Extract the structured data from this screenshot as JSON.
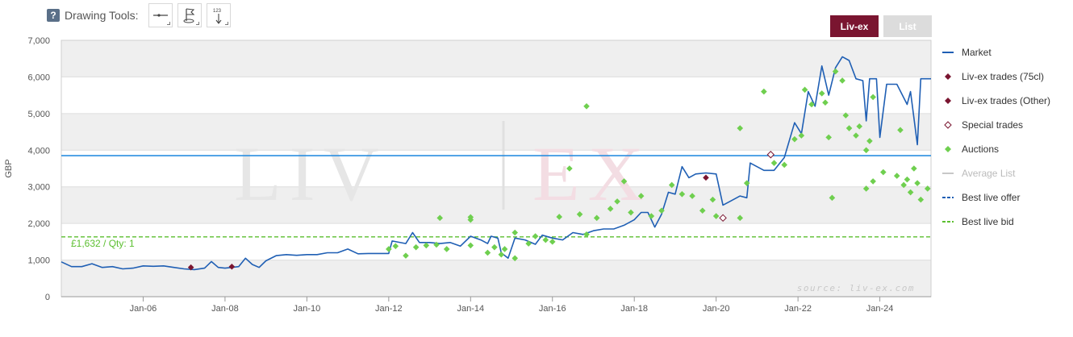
{
  "toolbar": {
    "help_label": "?",
    "title": "Drawing Tools:",
    "tool_123_label": "123"
  },
  "view_tabs": [
    {
      "label": "Liv-ex",
      "active": true
    },
    {
      "label": "List",
      "active": false
    }
  ],
  "colors": {
    "market": "#1f5fb4",
    "liv_ex_trades": "#7a1530",
    "special_trades": "#7a1530",
    "auctions": "#6fcf4f",
    "average_list": "#c8c8c8",
    "best_live_offer": "#1f5fb4",
    "best_live_bid": "#5bbf2f",
    "current_line": "#2a8ee0"
  },
  "chart_data": {
    "type": "line",
    "ylabel": "GBP",
    "ylim": [
      0,
      7000
    ],
    "y_ticks": [
      {
        "value": 0,
        "label": "0"
      },
      {
        "value": 1000,
        "label": "1,000"
      },
      {
        "value": 2000,
        "label": "2,000"
      },
      {
        "value": 3000,
        "label": "3,000"
      },
      {
        "value": 4000,
        "label": "4,000"
      },
      {
        "value": 5000,
        "label": "5,000"
      },
      {
        "value": 6000,
        "label": "6,000"
      },
      {
        "value": 7000,
        "label": "7,000"
      }
    ],
    "xlim": [
      "2004-01",
      "2025-04"
    ],
    "x_ticks": [
      {
        "value": "2006-01",
        "label": "Jan-06"
      },
      {
        "value": "2008-01",
        "label": "Jan-08"
      },
      {
        "value": "2010-01",
        "label": "Jan-10"
      },
      {
        "value": "2012-01",
        "label": "Jan-12"
      },
      {
        "value": "2014-01",
        "label": "Jan-14"
      },
      {
        "value": "2016-01",
        "label": "Jan-16"
      },
      {
        "value": "2018-01",
        "label": "Jan-18"
      },
      {
        "value": "2020-01",
        "label": "Jan-20"
      },
      {
        "value": "2022-01",
        "label": "Jan-22"
      },
      {
        "value": "2024-01",
        "label": "Jan-24"
      }
    ],
    "grid": true,
    "watermark": "LIV | EX",
    "source_text": "source: liv-ex.com",
    "reference_lines": [
      {
        "name": "Current",
        "value": 3850
      },
      {
        "name": "Best live bid",
        "value": 1632,
        "label": "£1,632 / Qty: 1"
      }
    ],
    "series": [
      {
        "name": "Market",
        "type": "line",
        "points": [
          [
            "2004-01",
            950
          ],
          [
            "2004-04",
            820
          ],
          [
            "2004-07",
            820
          ],
          [
            "2004-10",
            900
          ],
          [
            "2005-01",
            800
          ],
          [
            "2005-04",
            820
          ],
          [
            "2005-07",
            760
          ],
          [
            "2005-10",
            780
          ],
          [
            "2006-01",
            840
          ],
          [
            "2006-04",
            830
          ],
          [
            "2006-07",
            840
          ],
          [
            "2006-10",
            800
          ],
          [
            "2007-01",
            760
          ],
          [
            "2007-04",
            740
          ],
          [
            "2007-07",
            780
          ],
          [
            "2007-09",
            960
          ],
          [
            "2007-11",
            800
          ],
          [
            "2008-01",
            780
          ],
          [
            "2008-03",
            800
          ],
          [
            "2008-05",
            820
          ],
          [
            "2008-07",
            1050
          ],
          [
            "2008-09",
            880
          ],
          [
            "2008-11",
            800
          ],
          [
            "2009-01",
            980
          ],
          [
            "2009-04",
            1120
          ],
          [
            "2009-07",
            1150
          ],
          [
            "2009-10",
            1130
          ],
          [
            "2010-01",
            1150
          ],
          [
            "2010-04",
            1150
          ],
          [
            "2010-07",
            1200
          ],
          [
            "2010-10",
            1200
          ],
          [
            "2011-01",
            1300
          ],
          [
            "2011-04",
            1170
          ],
          [
            "2011-07",
            1180
          ],
          [
            "2011-10",
            1180
          ],
          [
            "2012-01",
            1180
          ],
          [
            "2012-02",
            1520
          ],
          [
            "2012-06",
            1450
          ],
          [
            "2012-08",
            1750
          ],
          [
            "2012-10",
            1480
          ],
          [
            "2013-01",
            1480
          ],
          [
            "2013-04",
            1450
          ],
          [
            "2013-07",
            1480
          ],
          [
            "2013-10",
            1380
          ],
          [
            "2014-01",
            1650
          ],
          [
            "2014-04",
            1550
          ],
          [
            "2014-06",
            1450
          ],
          [
            "2014-07",
            1650
          ],
          [
            "2014-09",
            1600
          ],
          [
            "2014-10",
            1200
          ],
          [
            "2014-12",
            1050
          ],
          [
            "2015-02",
            1600
          ],
          [
            "2015-05",
            1550
          ],
          [
            "2015-08",
            1430
          ],
          [
            "2015-10",
            1680
          ],
          [
            "2016-01",
            1600
          ],
          [
            "2016-04",
            1550
          ],
          [
            "2016-07",
            1750
          ],
          [
            "2016-10",
            1700
          ],
          [
            "2017-01",
            1800
          ],
          [
            "2017-04",
            1850
          ],
          [
            "2017-07",
            1850
          ],
          [
            "2017-10",
            1950
          ],
          [
            "2018-01",
            2100
          ],
          [
            "2018-03",
            2300
          ],
          [
            "2018-05",
            2300
          ],
          [
            "2018-07",
            1900
          ],
          [
            "2018-09",
            2250
          ],
          [
            "2018-11",
            2850
          ],
          [
            "2019-01",
            2800
          ],
          [
            "2019-03",
            3550
          ],
          [
            "2019-05",
            3250
          ],
          [
            "2019-07",
            3350
          ],
          [
            "2019-10",
            3380
          ],
          [
            "2020-01",
            3350
          ],
          [
            "2020-03",
            2500
          ],
          [
            "2020-05",
            2600
          ],
          [
            "2020-08",
            2750
          ],
          [
            "2020-10",
            2700
          ],
          [
            "2020-11",
            3650
          ],
          [
            "2021-03",
            3450
          ],
          [
            "2021-06",
            3450
          ],
          [
            "2021-09",
            3800
          ],
          [
            "2021-12",
            4750
          ],
          [
            "2022-02",
            4450
          ],
          [
            "2022-04",
            5600
          ],
          [
            "2022-06",
            5200
          ],
          [
            "2022-08",
            6300
          ],
          [
            "2022-10",
            5500
          ],
          [
            "2022-12",
            6250
          ],
          [
            "2023-02",
            6550
          ],
          [
            "2023-04",
            6450
          ],
          [
            "2023-06",
            5950
          ],
          [
            "2023-08",
            5900
          ],
          [
            "2023-09",
            4800
          ],
          [
            "2023-10",
            5950
          ],
          [
            "2023-12",
            5950
          ],
          [
            "2024-01",
            4350
          ],
          [
            "2024-03",
            5800
          ],
          [
            "2024-06",
            5800
          ],
          [
            "2024-09",
            5250
          ],
          [
            "2024-10",
            5600
          ],
          [
            "2024-12",
            4150
          ],
          [
            "2025-01",
            5950
          ],
          [
            "2025-04",
            5950
          ]
        ]
      },
      {
        "name": "Liv-ex trades (75cl)",
        "type": "scatter",
        "points": [
          [
            "2007-03",
            800
          ],
          [
            "2008-03",
            820
          ],
          [
            "2019-10",
            3250
          ]
        ]
      },
      {
        "name": "Liv-ex trades (Other)",
        "type": "scatter",
        "points": []
      },
      {
        "name": "Special trades",
        "type": "scatter",
        "points": [
          [
            "2020-03",
            2150
          ],
          [
            "2021-05",
            3880
          ]
        ]
      },
      {
        "name": "Auctions",
        "type": "scatter",
        "points": [
          [
            "2012-01",
            1300
          ],
          [
            "2012-03",
            1380
          ],
          [
            "2012-06",
            1120
          ],
          [
            "2012-09",
            1350
          ],
          [
            "2012-12",
            1400
          ],
          [
            "2013-03",
            1420
          ],
          [
            "2013-04",
            2150
          ],
          [
            "2013-06",
            1300
          ],
          [
            "2014-01",
            2100
          ],
          [
            "2014-01",
            2170
          ],
          [
            "2014-01",
            1400
          ],
          [
            "2014-06",
            1200
          ],
          [
            "2014-08",
            1350
          ],
          [
            "2014-10",
            1150
          ],
          [
            "2014-11",
            1300
          ],
          [
            "2015-02",
            1050
          ],
          [
            "2015-02",
            1750
          ],
          [
            "2015-06",
            1450
          ],
          [
            "2015-08",
            1650
          ],
          [
            "2015-11",
            1550
          ],
          [
            "2016-01",
            1500
          ],
          [
            "2016-03",
            2180
          ],
          [
            "2016-06",
            3500
          ],
          [
            "2016-09",
            2250
          ],
          [
            "2016-11",
            1700
          ],
          [
            "2017-02",
            2150
          ],
          [
            "2017-06",
            2400
          ],
          [
            "2017-08",
            2600
          ],
          [
            "2017-10",
            3150
          ],
          [
            "2017-12",
            2300
          ],
          [
            "2018-03",
            2750
          ],
          [
            "2018-06",
            2200
          ],
          [
            "2018-09",
            2350
          ],
          [
            "2018-12",
            3050
          ],
          [
            "2019-03",
            2800
          ],
          [
            "2019-06",
            2750
          ],
          [
            "2019-09",
            2350
          ],
          [
            "2019-12",
            2650
          ],
          [
            "2020-01",
            2200
          ],
          [
            "2020-08",
            2150
          ],
          [
            "2016-11",
            5200
          ],
          [
            "2020-08",
            4600
          ],
          [
            "2020-10",
            3100
          ],
          [
            "2021-03",
            5600
          ],
          [
            "2021-06",
            3650
          ],
          [
            "2021-09",
            3600
          ],
          [
            "2021-12",
            4300
          ],
          [
            "2022-02",
            4400
          ],
          [
            "2022-03",
            5650
          ],
          [
            "2022-05",
            5250
          ],
          [
            "2022-08",
            5550
          ],
          [
            "2022-09",
            5300
          ],
          [
            "2022-10",
            4350
          ],
          [
            "2022-12",
            6150
          ],
          [
            "2023-02",
            5900
          ],
          [
            "2023-03",
            4950
          ],
          [
            "2023-04",
            4600
          ],
          [
            "2023-06",
            4400
          ],
          [
            "2023-07",
            4650
          ],
          [
            "2023-09",
            4000
          ],
          [
            "2023-10",
            4250
          ],
          [
            "2023-11",
            5450
          ],
          [
            "2022-11",
            2700
          ],
          [
            "2023-09",
            2950
          ],
          [
            "2023-11",
            3150
          ],
          [
            "2024-02",
            3400
          ],
          [
            "2024-06",
            3300
          ],
          [
            "2024-08",
            3050
          ],
          [
            "2024-09",
            3200
          ],
          [
            "2024-11",
            3500
          ],
          [
            "2025-01",
            2650
          ],
          [
            "2025-03",
            2950
          ],
          [
            "2024-07",
            4550
          ],
          [
            "2024-10",
            2850
          ],
          [
            "2024-12",
            3100
          ]
        ]
      }
    ],
    "legend_position": "right",
    "legend": [
      {
        "name": "Market",
        "symbol": "line",
        "enabled": true
      },
      {
        "name": "Liv-ex trades (75cl)",
        "symbol": "diamond",
        "enabled": true
      },
      {
        "name": "Liv-ex trades (Other)",
        "symbol": "diamond",
        "enabled": true
      },
      {
        "name": "Special trades",
        "symbol": "diamond-open",
        "enabled": true
      },
      {
        "name": "Auctions",
        "symbol": "diamond-green",
        "enabled": true
      },
      {
        "name": "Average List",
        "symbol": "line-grey",
        "enabled": false
      },
      {
        "name": "Best live offer",
        "symbol": "dash-blue",
        "enabled": true
      },
      {
        "name": "Best live bid",
        "symbol": "dash-green",
        "enabled": true
      }
    ]
  }
}
